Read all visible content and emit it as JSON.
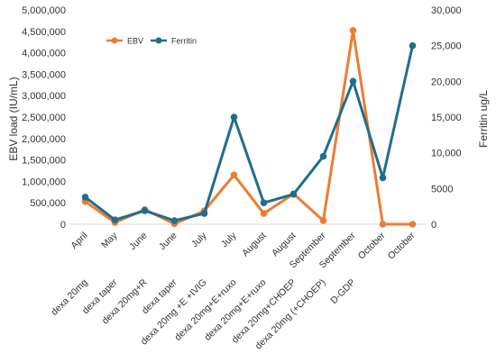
{
  "chart_data": {
    "type": "line",
    "categories": [
      [
        "April",
        "dexa 20mg"
      ],
      [
        "May",
        "dexa taper"
      ],
      [
        "June",
        "dexa 20mg+R"
      ],
      [
        "June",
        "dexa taper"
      ],
      [
        "July",
        "dexa 20mg +E +IVIG"
      ],
      [
        "July",
        "dexa 20mg+E+ruxo"
      ],
      [
        "August",
        "dexa 20mg+E+ruxo"
      ],
      [
        "August",
        "dexa 20mg+CHOEP"
      ],
      [
        "September",
        "dexa 20mg (+CHOEP)"
      ],
      [
        "September",
        "D-GDP"
      ],
      [
        "October",
        ""
      ],
      [
        "October",
        ""
      ]
    ],
    "series": [
      {
        "name": "EBV",
        "axis": "left",
        "color": "#ED7D31",
        "values": [
          530000,
          40000,
          340000,
          10000,
          310000,
          1150000,
          250000,
          710000,
          85000,
          4520000,
          0,
          0
        ]
      },
      {
        "name": "Ferritin",
        "axis": "right",
        "color": "#1F6E8C",
        "values": [
          3800,
          600,
          1900,
          500,
          1500,
          15000,
          3000,
          4200,
          9500,
          20000,
          6500,
          25000
        ]
      }
    ],
    "ylabel_left": "EBV load (IU/mL)",
    "ylabel_right": "Ferritin ug/L",
    "ylim_left": [
      0,
      5000000
    ],
    "ylim_right": [
      0,
      30000
    ],
    "yticks_left": [
      "0",
      "500,000",
      "1,000,000",
      "1,500,000",
      "2,000,000",
      "2,500,000",
      "3,000,000",
      "3,500,000",
      "4,000,000",
      "4,500,000",
      "5,000,000"
    ],
    "yticks_right": [
      "0",
      "5000",
      "10,000",
      "15,000",
      "20,000",
      "25,000",
      "30,000"
    ],
    "legend_position": "top-left",
    "grid": false
  }
}
